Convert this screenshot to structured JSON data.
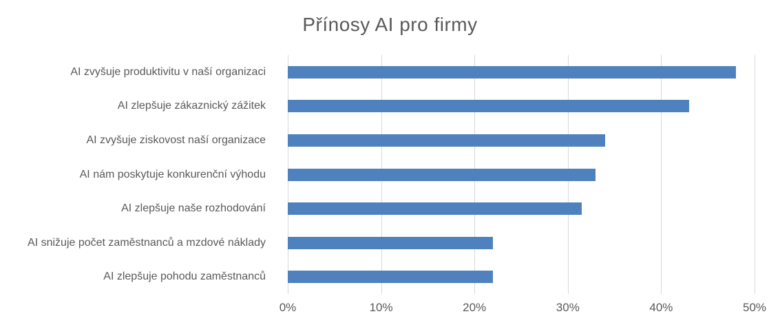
{
  "title": "Přínosy AI pro firmy",
  "chart_data": {
    "type": "bar",
    "orientation": "horizontal",
    "title": "Přínosy AI pro firmy",
    "categories": [
      "AI zvyšuje produktivitu v naší organizaci",
      "AI zlepšuje zákaznický zážitek",
      "AI zvyšuje ziskovost naší organizace",
      "AI nám poskytuje konkurenční výhodu",
      "AI zlepšuje naše rozhodování",
      "AI snižuje počet zaměstnanců a mzdové náklady",
      "AI zlepšuje pohodu zaměstnanců"
    ],
    "values": [
      48,
      43,
      34,
      33,
      31.5,
      22,
      22
    ],
    "value_unit": "%",
    "xlabel": "",
    "ylabel": "",
    "xlim": [
      0,
      50
    ],
    "x_ticks": [
      {
        "value": 0,
        "label": "0%"
      },
      {
        "value": 10,
        "label": "10%"
      },
      {
        "value": 20,
        "label": "20%"
      },
      {
        "value": 30,
        "label": "30%"
      },
      {
        "value": 40,
        "label": "40%"
      },
      {
        "value": 50,
        "label": "50%"
      }
    ],
    "grid": true,
    "legend": "none",
    "colors": {
      "bar": "#4E81BD",
      "gridline": "#D9D9D9",
      "text": "#595959",
      "background": "#FFFFFF"
    }
  }
}
